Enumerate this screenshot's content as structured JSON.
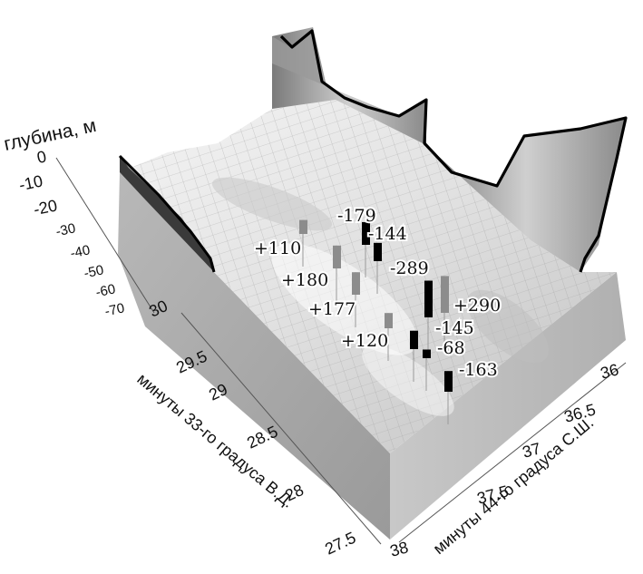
{
  "chart_data": {
    "type": "surface3d",
    "axes": {
      "z": {
        "label": "глубина, м",
        "ticks": [
          "0",
          "-10",
          "-20",
          "-30",
          "-40",
          "-50",
          "-60",
          "-70"
        ]
      },
      "x": {
        "label": "минуты 33-го градуса В.Д.",
        "ticks": [
          "30",
          "29.5",
          "29",
          "28.5",
          "28",
          "27.5"
        ]
      },
      "y": {
        "label": "минуты 44-го градуса С.Ш.",
        "ticks": [
          "36",
          "36.5",
          "37",
          "37.5",
          "38"
        ]
      }
    },
    "annotations": [
      {
        "label": "+110",
        "value": 110,
        "sign": "positive"
      },
      {
        "label": "+180",
        "value": 180,
        "sign": "positive"
      },
      {
        "label": "+177",
        "value": 177,
        "sign": "positive"
      },
      {
        "label": "+120",
        "value": 120,
        "sign": "positive"
      },
      {
        "label": "-179",
        "value": -179,
        "sign": "negative"
      },
      {
        "label": "-144",
        "value": -144,
        "sign": "negative"
      },
      {
        "label": "-289",
        "value": -289,
        "sign": "negative"
      },
      {
        "label": "+290",
        "value": 290,
        "sign": "positive"
      },
      {
        "label": "-145",
        "value": -145,
        "sign": "negative"
      },
      {
        "label": "-68",
        "value": -68,
        "sign": "negative"
      },
      {
        "label": "-163",
        "value": -163,
        "sign": "negative"
      }
    ],
    "colors": {
      "positive": "#8c8c8c",
      "negative": "#000000",
      "surface": "#e6e6e6",
      "side_wall": "#a6a6a6",
      "coastline": "#000000"
    }
  }
}
